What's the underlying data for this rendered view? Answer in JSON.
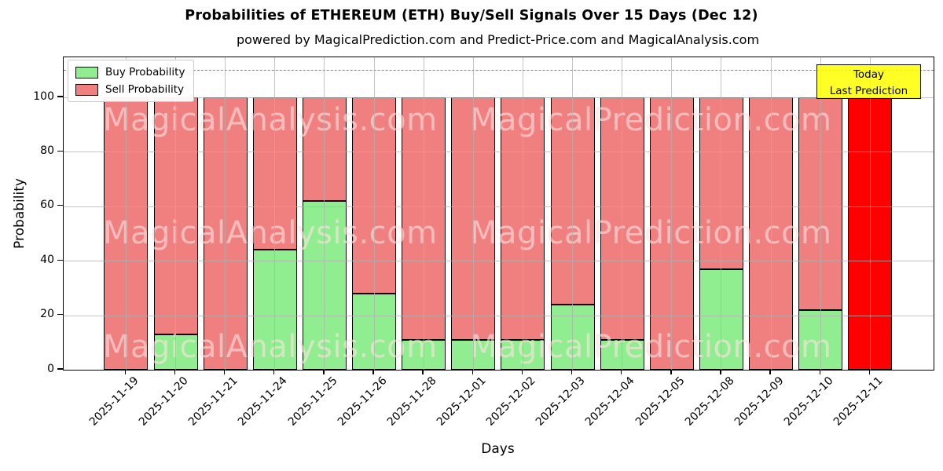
{
  "chart": {
    "title": "Probabilities of ETHEREUM (ETH) Buy/Sell Signals Over 15 Days (Dec 12)",
    "subtitle": "powered by MagicalPrediction.com and Predict-Price.com and MagicalAnalysis.com",
    "xlabel": "Days",
    "ylabel": "Probability"
  },
  "legend": {
    "buy_label": "Buy Probability",
    "sell_label": "Sell Probability"
  },
  "annotation": {
    "line1": "Today",
    "line2": "Last Prediction",
    "bg_color": "#ffff00"
  },
  "watermarks": {
    "left": "MagicalAnalysis.com",
    "right": "MagicalPrediction.com"
  },
  "chart_data": {
    "type": "bar",
    "stacked": true,
    "title": "Probabilities of ETHEREUM (ETH) Buy/Sell Signals Over 15 Days (Dec 12)",
    "subtitle": "powered by MagicalPrediction.com and Predict-Price.com and MagicalAnalysis.com",
    "xlabel": "Days",
    "ylabel": "Probability",
    "categories": [
      "2025-11-19",
      "2025-11-20",
      "2025-11-21",
      "2025-11-24",
      "2025-11-25",
      "2025-11-26",
      "2025-11-28",
      "2025-12-01",
      "2025-12-02",
      "2025-12-03",
      "2025-12-04",
      "2025-12-05",
      "2025-12-08",
      "2025-12-09",
      "2025-12-10",
      "2025-12-11"
    ],
    "series": [
      {
        "name": "Buy Probability",
        "color": "#90ee90",
        "values": [
          0,
          13,
          0,
          44,
          62,
          28,
          11,
          11,
          11,
          24,
          11,
          0,
          37,
          0,
          22,
          0
        ]
      },
      {
        "name": "Sell Probability",
        "color": "#f08080",
        "values": [
          100,
          87,
          100,
          56,
          38,
          72,
          89,
          89,
          89,
          76,
          89,
          100,
          63,
          100,
          78,
          100
        ]
      }
    ],
    "today_highlight": {
      "category": "2025-12-11",
      "color": "#ff0000",
      "note": "Today / Last Prediction"
    },
    "ylim": [
      0,
      115
    ],
    "yticks": [
      0,
      20,
      40,
      60,
      80,
      100
    ],
    "grid": true,
    "grid_color": "#b0b0b0",
    "dashed_line_y": 110,
    "dashed_line_color": "#808080",
    "bar_edge_color": "#000000",
    "legend_position": "upper left"
  }
}
